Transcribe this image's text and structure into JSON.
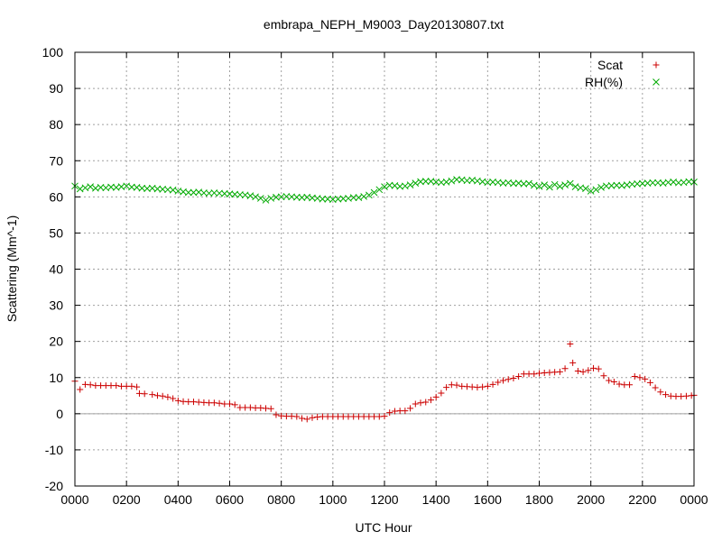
{
  "chart_data": {
    "type": "scatter",
    "title": "embrapa_NEPH_M9003_Day20130807.txt",
    "xlabel": "UTC Hour",
    "ylabel": "Scattering (Mm^-1)",
    "xlim": [
      0,
      24
    ],
    "ylim": [
      -20,
      100
    ],
    "x_tick_values": [
      0,
      2,
      4,
      6,
      8,
      10,
      12,
      14,
      16,
      18,
      20,
      22,
      24
    ],
    "x_tick_labels": [
      "0000",
      "0200",
      "0400",
      "0600",
      "0800",
      "1000",
      "1200",
      "1400",
      "1600",
      "1800",
      "2000",
      "2200",
      "0000"
    ],
    "y_tick_values": [
      -20,
      -10,
      0,
      10,
      20,
      30,
      40,
      50,
      60,
      70,
      80,
      90,
      100
    ],
    "y_tick_labels": [
      "-20",
      "-10",
      "0",
      "10",
      "20",
      "30",
      "40",
      "50",
      "60",
      "70",
      "80",
      "90",
      "100"
    ],
    "grid": true,
    "zero_line": true,
    "legend_position": "top-right",
    "series": [
      {
        "name": "Scat",
        "marker": "+",
        "color": "#cc0000",
        "points": [
          [
            0.0,
            9.0
          ],
          [
            0.2,
            6.7
          ],
          [
            0.4,
            8.1
          ],
          [
            0.6,
            8.0
          ],
          [
            0.8,
            7.8
          ],
          [
            1.0,
            7.8
          ],
          [
            1.2,
            7.8
          ],
          [
            1.4,
            7.8
          ],
          [
            1.6,
            7.8
          ],
          [
            1.8,
            7.6
          ],
          [
            2.0,
            7.6
          ],
          [
            2.2,
            7.6
          ],
          [
            2.4,
            7.4
          ],
          [
            2.5,
            5.6
          ],
          [
            2.7,
            5.5
          ],
          [
            3.0,
            5.3
          ],
          [
            3.2,
            5.0
          ],
          [
            3.4,
            4.9
          ],
          [
            3.6,
            4.6
          ],
          [
            3.8,
            4.2
          ],
          [
            4.0,
            3.6
          ],
          [
            4.2,
            3.4
          ],
          [
            4.4,
            3.3
          ],
          [
            4.6,
            3.3
          ],
          [
            4.8,
            3.2
          ],
          [
            5.0,
            3.1
          ],
          [
            5.2,
            3.0
          ],
          [
            5.4,
            3.0
          ],
          [
            5.6,
            2.9
          ],
          [
            5.8,
            2.7
          ],
          [
            6.0,
            2.7
          ],
          [
            6.2,
            2.5
          ],
          [
            6.4,
            1.7
          ],
          [
            6.6,
            1.7
          ],
          [
            6.8,
            1.7
          ],
          [
            7.0,
            1.6
          ],
          [
            7.2,
            1.6
          ],
          [
            7.4,
            1.5
          ],
          [
            7.6,
            1.4
          ],
          [
            7.8,
            -0.3
          ],
          [
            8.0,
            -0.6
          ],
          [
            8.2,
            -0.7
          ],
          [
            8.4,
            -0.7
          ],
          [
            8.6,
            -0.8
          ],
          [
            8.8,
            -1.3
          ],
          [
            9.0,
            -1.5
          ],
          [
            9.2,
            -1.1
          ],
          [
            9.4,
            -0.9
          ],
          [
            9.6,
            -0.8
          ],
          [
            9.8,
            -0.8
          ],
          [
            10.0,
            -0.8
          ],
          [
            10.2,
            -0.8
          ],
          [
            10.4,
            -0.8
          ],
          [
            10.6,
            -0.8
          ],
          [
            10.8,
            -0.8
          ],
          [
            11.0,
            -0.8
          ],
          [
            11.2,
            -0.8
          ],
          [
            11.4,
            -0.8
          ],
          [
            11.6,
            -0.8
          ],
          [
            11.8,
            -0.8
          ],
          [
            12.0,
            -0.7
          ],
          [
            12.2,
            0.3
          ],
          [
            12.4,
            0.7
          ],
          [
            12.6,
            0.8
          ],
          [
            12.8,
            0.8
          ],
          [
            13.0,
            1.5
          ],
          [
            13.2,
            2.7
          ],
          [
            13.4,
            3.0
          ],
          [
            13.6,
            3.2
          ],
          [
            13.8,
            3.8
          ],
          [
            14.0,
            4.6
          ],
          [
            14.2,
            5.7
          ],
          [
            14.4,
            7.3
          ],
          [
            14.6,
            8.0
          ],
          [
            14.8,
            7.9
          ],
          [
            15.0,
            7.6
          ],
          [
            15.2,
            7.5
          ],
          [
            15.4,
            7.4
          ],
          [
            15.6,
            7.3
          ],
          [
            15.8,
            7.4
          ],
          [
            16.0,
            7.6
          ],
          [
            16.2,
            8.1
          ],
          [
            16.4,
            8.7
          ],
          [
            16.6,
            9.2
          ],
          [
            16.8,
            9.5
          ],
          [
            17.0,
            9.8
          ],
          [
            17.2,
            10.3
          ],
          [
            17.4,
            11.0
          ],
          [
            17.6,
            11.0
          ],
          [
            17.8,
            11.0
          ],
          [
            18.0,
            11.2
          ],
          [
            18.2,
            11.3
          ],
          [
            18.4,
            11.4
          ],
          [
            18.6,
            11.5
          ],
          [
            18.8,
            11.6
          ],
          [
            19.0,
            12.5
          ],
          [
            19.2,
            19.3
          ],
          [
            19.3,
            14.1
          ],
          [
            19.5,
            11.8
          ],
          [
            19.7,
            11.6
          ],
          [
            19.9,
            12.0
          ],
          [
            20.1,
            12.6
          ],
          [
            20.3,
            12.4
          ],
          [
            20.5,
            10.5
          ],
          [
            20.7,
            9.2
          ],
          [
            20.9,
            8.8
          ],
          [
            21.1,
            8.2
          ],
          [
            21.3,
            8.0
          ],
          [
            21.5,
            8.0
          ],
          [
            21.7,
            10.3
          ],
          [
            21.9,
            10.0
          ],
          [
            22.1,
            9.6
          ],
          [
            22.3,
            8.6
          ],
          [
            22.5,
            7.2
          ],
          [
            22.7,
            6.0
          ],
          [
            22.9,
            5.3
          ],
          [
            23.1,
            4.9
          ],
          [
            23.3,
            4.8
          ],
          [
            23.5,
            4.8
          ],
          [
            23.7,
            4.9
          ],
          [
            23.9,
            5.0
          ],
          [
            24.0,
            5.1
          ]
        ]
      },
      {
        "name": "RH(%)",
        "marker": "x",
        "color": "#00aa00",
        "points": [
          [
            0.0,
            63.0
          ],
          [
            0.2,
            62.2
          ],
          [
            0.4,
            62.5
          ],
          [
            0.6,
            62.8
          ],
          [
            0.8,
            62.4
          ],
          [
            1.0,
            62.6
          ],
          [
            1.2,
            62.5
          ],
          [
            1.4,
            62.7
          ],
          [
            1.6,
            62.6
          ],
          [
            1.8,
            62.8
          ],
          [
            2.0,
            63.0
          ],
          [
            2.2,
            62.7
          ],
          [
            2.4,
            62.6
          ],
          [
            2.6,
            62.4
          ],
          [
            2.8,
            62.3
          ],
          [
            3.0,
            62.4
          ],
          [
            3.2,
            62.2
          ],
          [
            3.4,
            62.1
          ],
          [
            3.6,
            62.0
          ],
          [
            3.8,
            61.9
          ],
          [
            4.0,
            61.6
          ],
          [
            4.2,
            61.4
          ],
          [
            4.4,
            61.2
          ],
          [
            4.6,
            61.2
          ],
          [
            4.8,
            61.3
          ],
          [
            5.0,
            61.1
          ],
          [
            5.2,
            61.0
          ],
          [
            5.4,
            61.1
          ],
          [
            5.6,
            61.0
          ],
          [
            5.8,
            60.9
          ],
          [
            6.0,
            60.8
          ],
          [
            6.2,
            60.7
          ],
          [
            6.4,
            60.6
          ],
          [
            6.6,
            60.5
          ],
          [
            6.8,
            60.3
          ],
          [
            7.0,
            60.0
          ],
          [
            7.2,
            59.6
          ],
          [
            7.4,
            59.1
          ],
          [
            7.6,
            59.6
          ],
          [
            7.8,
            59.9
          ],
          [
            8.0,
            60.0
          ],
          [
            8.2,
            60.1
          ],
          [
            8.4,
            60.0
          ],
          [
            8.6,
            59.9
          ],
          [
            8.8,
            59.8
          ],
          [
            9.0,
            59.9
          ],
          [
            9.2,
            59.7
          ],
          [
            9.4,
            59.6
          ],
          [
            9.6,
            59.4
          ],
          [
            9.8,
            59.4
          ],
          [
            10.0,
            59.3
          ],
          [
            10.2,
            59.4
          ],
          [
            10.4,
            59.5
          ],
          [
            10.6,
            59.6
          ],
          [
            10.8,
            59.8
          ],
          [
            11.0,
            59.8
          ],
          [
            11.2,
            60.1
          ],
          [
            11.4,
            60.5
          ],
          [
            11.6,
            61.2
          ],
          [
            11.8,
            62.0
          ],
          [
            12.0,
            62.8
          ],
          [
            12.2,
            63.2
          ],
          [
            12.4,
            63.1
          ],
          [
            12.6,
            62.9
          ],
          [
            12.8,
            63.0
          ],
          [
            13.0,
            63.3
          ],
          [
            13.2,
            63.8
          ],
          [
            13.4,
            64.2
          ],
          [
            13.6,
            64.3
          ],
          [
            13.8,
            64.3
          ],
          [
            14.0,
            64.1
          ],
          [
            14.2,
            64.0
          ],
          [
            14.4,
            64.1
          ],
          [
            14.6,
            64.4
          ],
          [
            14.8,
            64.8
          ],
          [
            15.0,
            64.7
          ],
          [
            15.2,
            64.5
          ],
          [
            15.4,
            64.6
          ],
          [
            15.6,
            64.4
          ],
          [
            15.8,
            64.2
          ],
          [
            16.0,
            64.0
          ],
          [
            16.2,
            64.1
          ],
          [
            16.4,
            64.0
          ],
          [
            16.6,
            63.8
          ],
          [
            16.8,
            63.9
          ],
          [
            17.0,
            63.7
          ],
          [
            17.2,
            63.8
          ],
          [
            17.4,
            63.6
          ],
          [
            17.6,
            63.7
          ],
          [
            17.8,
            63.2
          ],
          [
            18.0,
            62.9
          ],
          [
            18.2,
            63.3
          ],
          [
            18.4,
            62.7
          ],
          [
            18.6,
            63.4
          ],
          [
            18.8,
            62.9
          ],
          [
            19.0,
            63.3
          ],
          [
            19.2,
            63.7
          ],
          [
            19.4,
            62.8
          ],
          [
            19.6,
            62.5
          ],
          [
            19.8,
            62.3
          ],
          [
            20.0,
            61.6
          ],
          [
            20.2,
            62.0
          ],
          [
            20.4,
            62.6
          ],
          [
            20.6,
            63.0
          ],
          [
            20.8,
            63.1
          ],
          [
            21.0,
            63.2
          ],
          [
            21.2,
            63.1
          ],
          [
            21.4,
            63.3
          ],
          [
            21.6,
            63.5
          ],
          [
            21.8,
            63.6
          ],
          [
            22.0,
            63.7
          ],
          [
            22.2,
            63.8
          ],
          [
            22.4,
            63.9
          ],
          [
            22.6,
            63.9
          ],
          [
            22.8,
            63.8
          ],
          [
            23.0,
            64.0
          ],
          [
            23.2,
            64.1
          ],
          [
            23.4,
            63.9
          ],
          [
            23.6,
            64.0
          ],
          [
            23.8,
            64.2
          ],
          [
            24.0,
            64.1
          ]
        ]
      }
    ]
  }
}
